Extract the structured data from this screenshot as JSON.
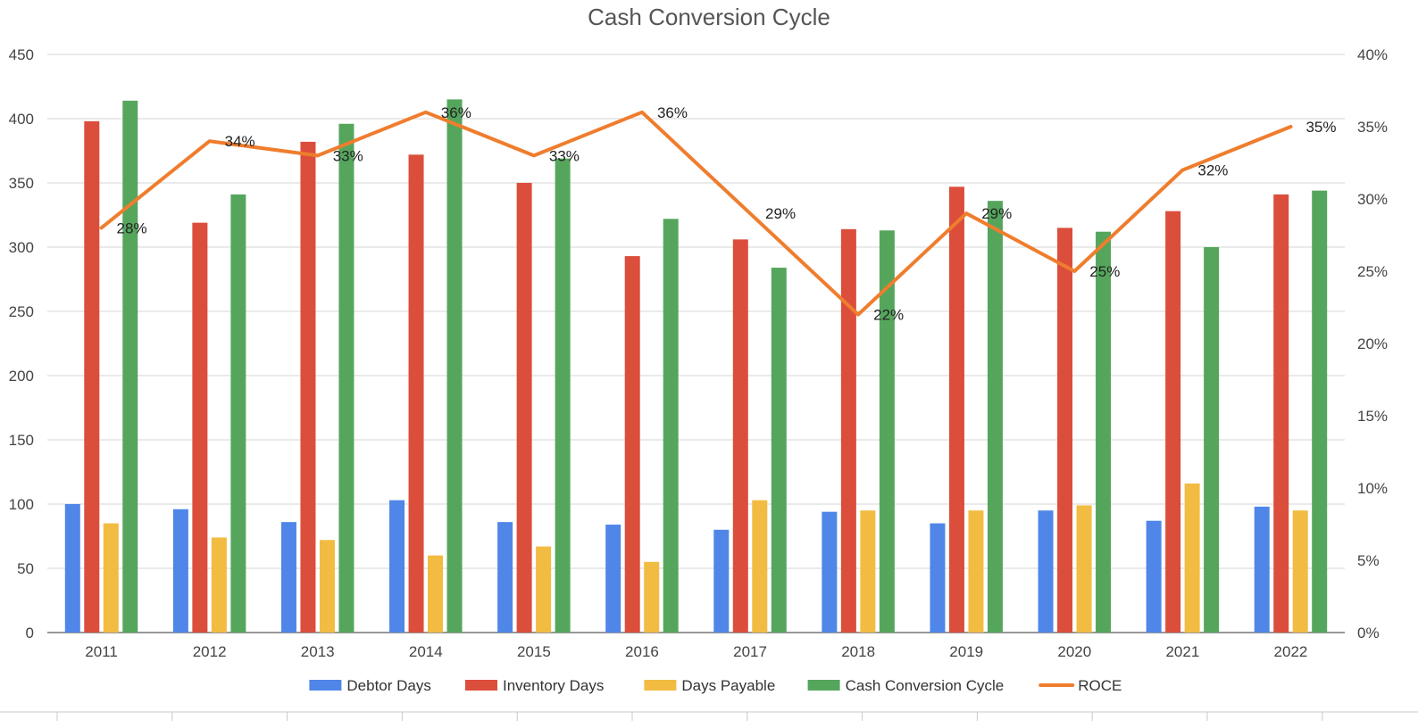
{
  "chart_data": {
    "type": "bar",
    "title": "Cash Conversion Cycle",
    "categories": [
      "2011",
      "2012",
      "2013",
      "2014",
      "2015",
      "2016",
      "2017",
      "2018",
      "2019",
      "2020",
      "2021",
      "2022"
    ],
    "series": [
      {
        "name": "Debtor Days",
        "type": "bar",
        "axis": "left",
        "color": "#4f86e8",
        "values": [
          100,
          96,
          86,
          103,
          86,
          84,
          80,
          94,
          85,
          95,
          87,
          98
        ]
      },
      {
        "name": "Inventory Days",
        "type": "bar",
        "axis": "left",
        "color": "#dc4e3c",
        "values": [
          398,
          319,
          382,
          372,
          350,
          293,
          306,
          314,
          347,
          315,
          328,
          341
        ]
      },
      {
        "name": "Days Payable",
        "type": "bar",
        "axis": "left",
        "color": "#f2bb42",
        "values": [
          85,
          74,
          72,
          60,
          67,
          55,
          103,
          95,
          95,
          99,
          116,
          95
        ]
      },
      {
        "name": "Cash Conversion Cycle",
        "type": "bar",
        "axis": "left",
        "color": "#55a65c",
        "values": [
          414,
          341,
          396,
          415,
          369,
          322,
          284,
          313,
          336,
          312,
          300,
          344
        ]
      },
      {
        "name": "ROCE",
        "type": "line",
        "axis": "right",
        "color": "#ef7d2d",
        "values": [
          28,
          34,
          33,
          36,
          33,
          36,
          29,
          22,
          29,
          25,
          32,
          35
        ],
        "labels": [
          "28%",
          "34%",
          "33%",
          "36%",
          "33%",
          "36%",
          "29%",
          "22%",
          "29%",
          "25%",
          "32%",
          "35%"
        ]
      }
    ],
    "y_left": {
      "min": 0,
      "max": 450,
      "step": 50,
      "ticks": [
        "0",
        "50",
        "100",
        "150",
        "200",
        "250",
        "300",
        "350",
        "400",
        "450"
      ]
    },
    "y_right": {
      "min": 0,
      "max": 40,
      "step": 5,
      "ticks": [
        "0%",
        "5%",
        "10%",
        "15%",
        "20%",
        "25%",
        "30%",
        "35%",
        "40%"
      ]
    },
    "grid": true,
    "legend_position": "bottom"
  }
}
